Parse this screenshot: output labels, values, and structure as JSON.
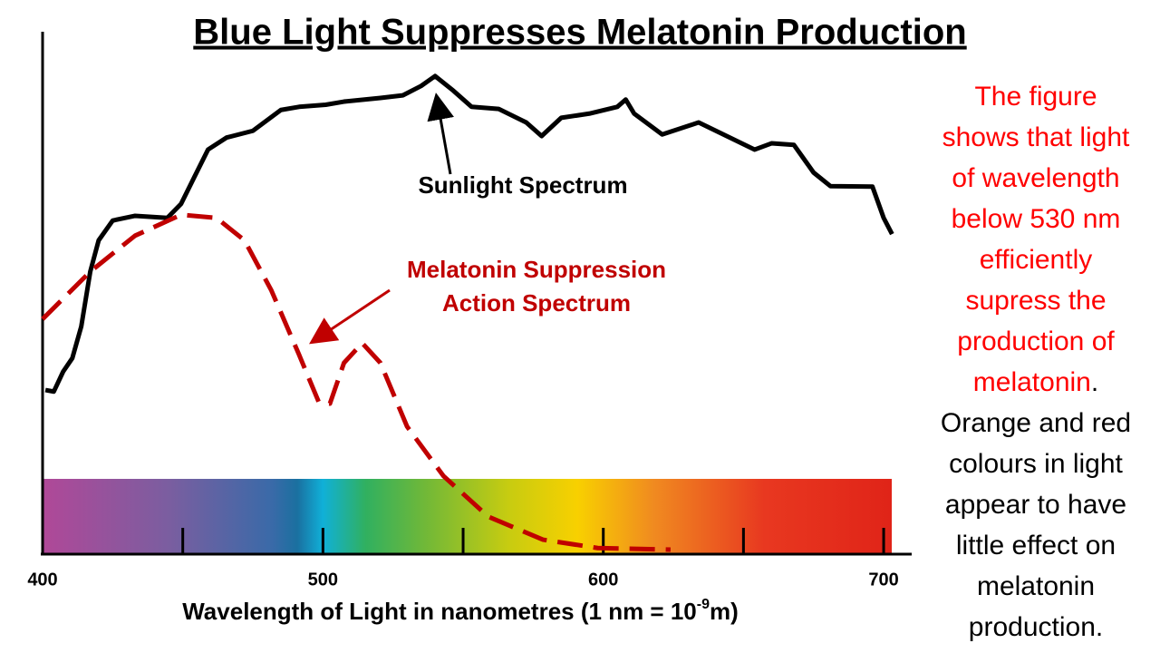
{
  "chart_data": {
    "type": "line",
    "title": "Blue Light Suppresses Melatonin Production",
    "x_label_parts": [
      "Wavelength of Light in nanometres (1 nm = 10",
      "-9",
      "m)"
    ],
    "xlim": [
      400,
      710
    ],
    "xticks": [
      400,
      500,
      600,
      700
    ],
    "minor_xticks": [
      450,
      500,
      550,
      600,
      650,
      700
    ],
    "ylim": [
      0,
      100
    ],
    "series": [
      {
        "color": "#000000",
        "dashed": false,
        "x": [
          401,
          404,
          407.3,
          410.6,
          413.8,
          417,
          420,
          425,
          433,
          444.5,
          449.4,
          454,
          459,
          465.6,
          475,
          485,
          491.5,
          501,
          507.5,
          520.5,
          528.5,
          535,
          540,
          546.5,
          553,
          562.7,
          572.5,
          578,
          585,
          595,
          605,
          608,
          611,
          621,
          634,
          644,
          654,
          660,
          668,
          675,
          681,
          696,
          700,
          703
        ],
        "values": [
          31.3,
          31,
          34.8,
          37.4,
          43.5,
          54,
          60,
          63.8,
          64.7,
          64.3,
          67,
          72,
          77.4,
          79.7,
          81,
          85,
          85.6,
          86,
          86.6,
          87.3,
          87.8,
          89.6,
          91.5,
          88.7,
          85.6,
          85.2,
          82.6,
          80,
          83.5,
          84.3,
          85.6,
          87,
          84.3,
          80.3,
          82.6,
          80,
          77.4,
          78.6,
          78.3,
          73,
          70.4,
          70.3,
          64.3,
          61.2
        ]
      },
      {
        "color": "#c00000",
        "dashed": true,
        "x": [
          400,
          417,
          433,
          449.4,
          462,
          472,
          481.6,
          491.3,
          498.5,
          502.5,
          507.5,
          514,
          520.5,
          530,
          543,
          559,
          578.5,
          598,
          624
        ],
        "values": [
          44.9,
          54,
          60.9,
          64.9,
          64.3,
          60,
          50.4,
          38.3,
          29,
          28.7,
          36.5,
          40.3,
          36.5,
          24.3,
          14.8,
          7,
          2.6,
          1,
          0.7
        ]
      }
    ],
    "annotations": {
      "sunlight": [
        "Sunlight Spectrum"
      ],
      "melatonin": [
        "Melatonin Suppression",
        "Action Spectrum"
      ]
    },
    "note": {
      "red": [
        "The figure",
        "shows that light",
        "of wavelength",
        "below 530 nm",
        "efficiently",
        "supress the",
        "production of",
        "melatonin"
      ],
      "period": ".",
      "black": [
        "Orange and red",
        "colours in light",
        "appear to have",
        "little effect on",
        "melatonin",
        "production."
      ]
    }
  }
}
